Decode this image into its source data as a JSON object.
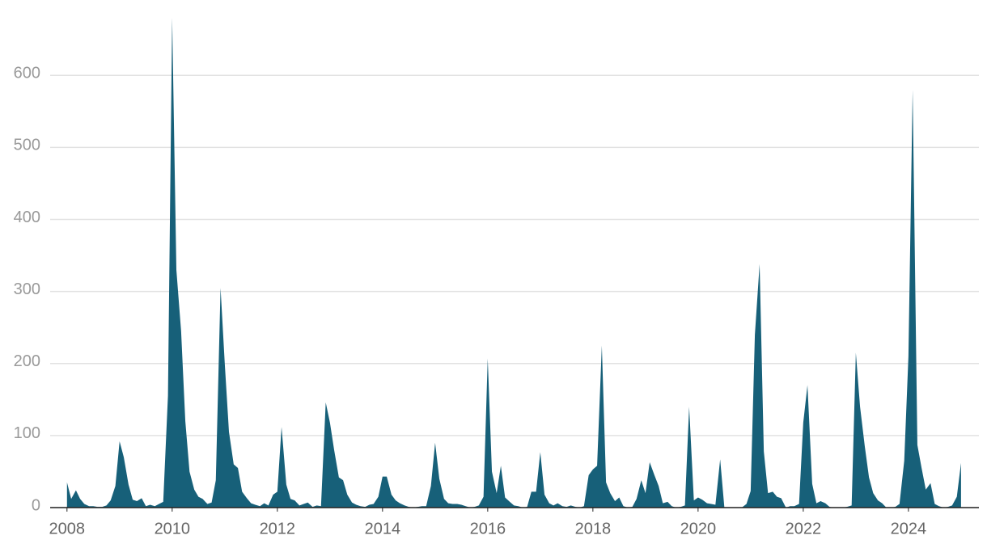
{
  "chart_data": {
    "type": "area",
    "color": "#176079",
    "x": [
      2008,
      2008.08,
      2008.17,
      2008.25,
      2008.33,
      2008.42,
      2008.5,
      2008.58,
      2008.67,
      2008.75,
      2008.83,
      2008.92,
      2009,
      2009.08,
      2009.17,
      2009.25,
      2009.33,
      2009.42,
      2009.5,
      2009.58,
      2009.67,
      2009.75,
      2009.83,
      2009.92,
      2010,
      2010.08,
      2010.17,
      2010.25,
      2010.33,
      2010.42,
      2010.5,
      2010.58,
      2010.67,
      2010.75,
      2010.83,
      2010.92,
      2011,
      2011.08,
      2011.17,
      2011.25,
      2011.33,
      2011.42,
      2011.5,
      2011.58,
      2011.67,
      2011.75,
      2011.83,
      2011.92,
      2012,
      2012.08,
      2012.17,
      2012.25,
      2012.33,
      2012.42,
      2012.5,
      2012.58,
      2012.67,
      2012.75,
      2012.83,
      2012.92,
      2013,
      2013.08,
      2013.17,
      2013.25,
      2013.33,
      2013.42,
      2013.5,
      2013.58,
      2013.67,
      2013.75,
      2013.83,
      2013.92,
      2014,
      2014.08,
      2014.17,
      2014.25,
      2014.33,
      2014.42,
      2014.5,
      2014.58,
      2014.67,
      2014.75,
      2014.83,
      2014.92,
      2015,
      2015.08,
      2015.17,
      2015.25,
      2015.33,
      2015.42,
      2015.5,
      2015.58,
      2015.67,
      2015.75,
      2015.83,
      2015.92,
      2016,
      2016.08,
      2016.17,
      2016.25,
      2016.33,
      2016.42,
      2016.5,
      2016.58,
      2016.67,
      2016.75,
      2016.83,
      2016.92,
      2017,
      2017.08,
      2017.17,
      2017.25,
      2017.33,
      2017.42,
      2017.5,
      2017.58,
      2017.67,
      2017.75,
      2017.83,
      2017.92,
      2018,
      2018.08,
      2018.17,
      2018.25,
      2018.33,
      2018.42,
      2018.5,
      2018.58,
      2018.67,
      2018.75,
      2018.83,
      2018.92,
      2019,
      2019.08,
      2019.17,
      2019.25,
      2019.33,
      2019.42,
      2019.5,
      2019.58,
      2019.67,
      2019.75,
      2019.83,
      2019.92,
      2020,
      2020.08,
      2020.17,
      2020.25,
      2020.33,
      2020.42,
      2020.5,
      2020.58,
      2020.67,
      2020.75,
      2020.83,
      2020.92,
      2021,
      2021.08,
      2021.17,
      2021.25,
      2021.33,
      2021.42,
      2021.5,
      2021.58,
      2021.67,
      2021.75,
      2021.83,
      2021.92,
      2022,
      2022.08,
      2022.17,
      2022.25,
      2022.33,
      2022.42,
      2022.5,
      2022.58,
      2022.67,
      2022.75,
      2022.83,
      2022.92,
      2023,
      2023.08,
      2023.17,
      2023.25,
      2023.33,
      2023.42,
      2023.5,
      2023.58,
      2023.67,
      2023.75,
      2023.83,
      2023.92,
      2024,
      2024.08,
      2024.17,
      2024.25,
      2024.33,
      2024.42,
      2024.5,
      2024.58,
      2024.67,
      2024.75,
      2024.83,
      2024.92,
      2025
    ],
    "values": [
      35,
      12,
      24,
      12,
      5,
      2,
      2,
      1,
      1,
      3,
      10,
      30,
      92,
      70,
      32,
      11,
      9,
      13,
      2,
      4,
      2,
      5,
      8,
      155,
      680,
      330,
      245,
      120,
      50,
      25,
      15,
      12,
      5,
      7,
      38,
      305,
      200,
      105,
      60,
      55,
      22,
      13,
      6,
      4,
      2,
      6,
      3,
      18,
      22,
      112,
      32,
      12,
      10,
      3,
      5,
      7,
      1,
      3,
      2,
      146,
      118,
      80,
      42,
      38,
      18,
      7,
      4,
      2,
      1,
      4,
      5,
      15,
      43,
      43,
      18,
      10,
      6,
      3,
      1,
      0,
      1,
      2,
      2,
      30,
      90,
      40,
      12,
      6,
      5,
      5,
      4,
      2,
      0,
      1,
      3,
      15,
      207,
      50,
      20,
      58,
      14,
      8,
      3,
      2,
      0,
      1,
      22,
      22,
      77,
      18,
      6,
      3,
      6,
      2,
      1,
      3,
      1,
      0,
      2,
      45,
      53,
      58,
      225,
      35,
      20,
      9,
      14,
      2,
      0,
      1,
      12,
      38,
      20,
      63,
      45,
      30,
      6,
      8,
      2,
      0,
      1,
      3,
      140,
      10,
      14,
      11,
      6,
      5,
      4,
      67,
      0,
      0,
      0,
      0,
      0,
      5,
      23,
      240,
      338,
      78,
      20,
      22,
      15,
      13,
      0,
      2,
      2,
      5,
      118,
      170,
      33,
      6,
      9,
      6,
      1,
      0,
      0,
      0,
      1,
      3,
      215,
      140,
      85,
      42,
      20,
      10,
      6,
      0,
      0,
      1,
      5,
      65,
      210,
      580,
      87,
      55,
      25,
      34,
      5,
      2,
      0,
      1,
      3,
      15,
      62
    ],
    "xlim": [
      2007.68,
      2025.34
    ],
    "xticks": [
      2008,
      2010,
      2012,
      2014,
      2016,
      2018,
      2020,
      2022,
      2024
    ],
    "ylim": [
      0,
      680
    ],
    "yticks": [
      0,
      100,
      200,
      300,
      400,
      500,
      600
    ],
    "grid": true
  }
}
